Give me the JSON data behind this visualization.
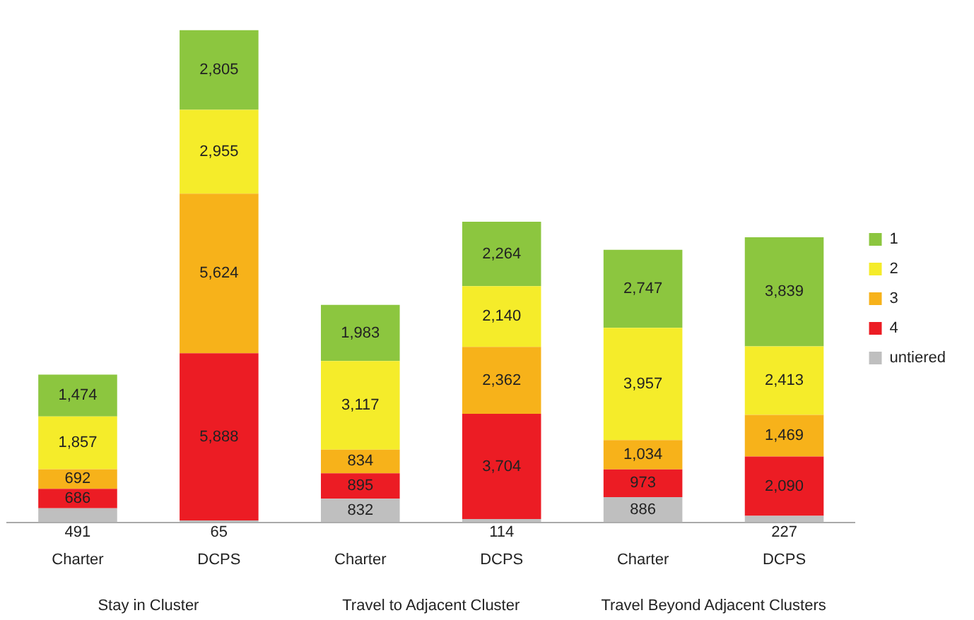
{
  "chart_data": {
    "type": "bar",
    "stacked": true,
    "legend": "right",
    "grid": false,
    "categories": [
      "Charter",
      "DCPS",
      "Charter",
      "DCPS",
      "Charter",
      "DCPS"
    ],
    "annotations": [
      "Stay in Cluster",
      "Travel to Adjacent Cluster",
      "Travel Beyond Adjacent Clusters"
    ],
    "series": [
      {
        "name": "untiered",
        "color": "#bfbfbf",
        "values": [
          491,
          65,
          832,
          114,
          886,
          227
        ],
        "value_labels": [
          "491",
          "65",
          "832",
          "114",
          "886",
          "227"
        ]
      },
      {
        "name": "4",
        "color": "#ec1c24",
        "values": [
          686,
          5888,
          895,
          3704,
          973,
          2090
        ],
        "value_labels": [
          "686",
          "5,888",
          "895",
          "3,704",
          "973",
          "2,090"
        ]
      },
      {
        "name": "3",
        "color": "#f7b21a",
        "values": [
          692,
          5624,
          834,
          2362,
          1034,
          1469
        ],
        "value_labels": [
          "692",
          "5,624",
          "834",
          "2,362",
          "1,034",
          "1,469"
        ]
      },
      {
        "name": "2",
        "color": "#f5ec2a",
        "values": [
          1857,
          2955,
          3117,
          2140,
          3957,
          2413
        ],
        "value_labels": [
          "1,857",
          "2,955",
          "3,117",
          "2,140",
          "3,957",
          "2,413"
        ]
      },
      {
        "name": "1",
        "color": "#8cc63f",
        "values": [
          1474,
          2805,
          1983,
          2264,
          2747,
          3839
        ],
        "value_labels": [
          "1,474",
          "2,805",
          "1,983",
          "2,264",
          "2,747",
          "3,839"
        ]
      }
    ]
  }
}
